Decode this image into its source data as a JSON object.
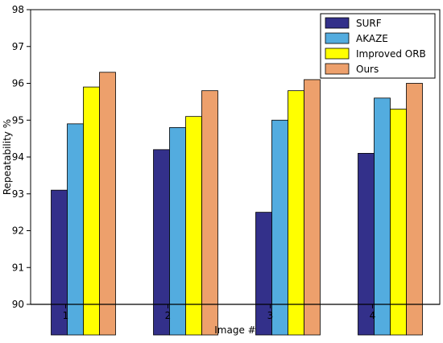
{
  "chart_data": {
    "type": "bar",
    "title": "",
    "xlabel": "Image #",
    "ylabel": "Repeatability %",
    "categories": [
      "1",
      "2",
      "3",
      "4"
    ],
    "ylim": [
      90,
      98
    ],
    "yticks": [
      "90",
      "91",
      "92",
      "93",
      "94",
      "95",
      "96",
      "97",
      "98"
    ],
    "grid": false,
    "legend_position": "top-right",
    "series": [
      {
        "name": "SURF",
        "color": "#33308a",
        "values": [
          93.1,
          94.2,
          92.5,
          94.1
        ]
      },
      {
        "name": "AKAZE",
        "color": "#53acdf",
        "values": [
          94.9,
          94.8,
          95.0,
          95.6
        ]
      },
      {
        "name": "Improved ORB",
        "color": "#ffff00",
        "values": [
          95.9,
          95.1,
          95.8,
          95.3
        ]
      },
      {
        "name": "Ours",
        "color": "#eda06c",
        "values": [
          96.3,
          95.8,
          96.1,
          96.0
        ]
      }
    ]
  }
}
